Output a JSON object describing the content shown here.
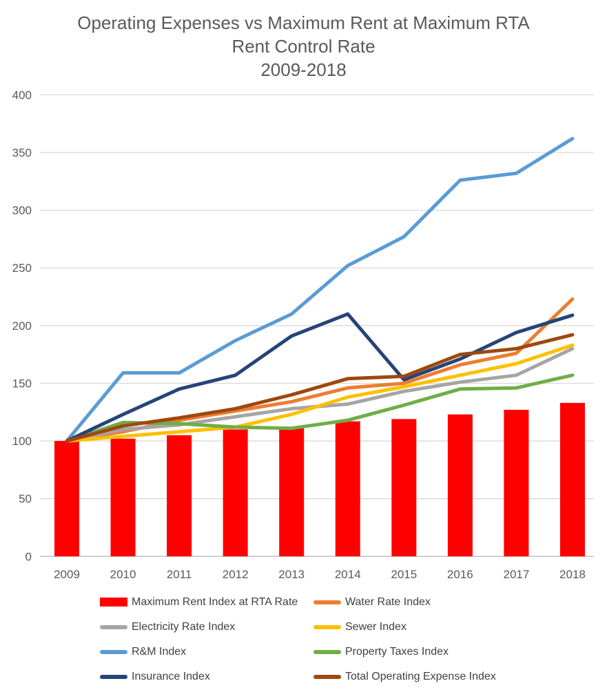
{
  "chart_data": {
    "type": "combo-bar-line",
    "title_lines": [
      "Operating Expenses vs Maximum Rent at Maximum RTA",
      "Rent Control Rate",
      "2009-2018"
    ],
    "categories": [
      "2009",
      "2010",
      "2011",
      "2012",
      "2013",
      "2014",
      "2015",
      "2016",
      "2017",
      "2018"
    ],
    "y_axis": {
      "min": 0,
      "max": 400,
      "step": 50,
      "tick_labels": [
        "0",
        "50",
        "100",
        "150",
        "200",
        "250",
        "300",
        "350",
        "400"
      ]
    },
    "grid": true,
    "bar_series": {
      "name": "Maximum Rent Index at RTA Rate",
      "color": "#FF0000",
      "values": [
        100,
        102,
        105,
        110,
        112,
        117,
        119,
        123,
        127,
        133
      ]
    },
    "line_series": [
      {
        "name": "Water Rate Index",
        "color": "#ED7D31",
        "values": [
          100,
          108,
          118,
          126,
          134,
          146,
          150,
          166,
          176,
          223
        ]
      },
      {
        "name": "Electricity Rate Index",
        "color": "#A5A5A5",
        "values": [
          100,
          110,
          114,
          121,
          128,
          132,
          143,
          151,
          157,
          180
        ]
      },
      {
        "name": "Sewer Index",
        "color": "#FFC000",
        "values": [
          100,
          104,
          108,
          112,
          123,
          138,
          147,
          157,
          167,
          183
        ]
      },
      {
        "name": "R&M Index",
        "color": "#5B9BD5",
        "values": [
          100,
          159,
          159,
          187,
          210,
          252,
          277,
          326,
          332,
          362
        ]
      },
      {
        "name": "Property Taxes Index",
        "color": "#70AD47",
        "values": [
          100,
          116,
          115,
          112,
          111,
          118,
          131,
          145,
          146,
          157
        ]
      },
      {
        "name": "Insurance Index",
        "color": "#264478",
        "values": [
          100,
          123,
          145,
          157,
          191,
          210,
          153,
          171,
          194,
          209
        ]
      },
      {
        "name": "Total Operating Expense Index",
        "color": "#9E480E",
        "values": [
          100,
          113,
          120,
          128,
          140,
          154,
          156,
          175,
          180,
          192
        ]
      }
    ],
    "legend": {
      "position": "bottom",
      "columns": 2,
      "items": [
        {
          "label": "Maximum Rent Index at RTA Rate",
          "color": "#FF0000",
          "swatch": "bar"
        },
        {
          "label": "Water Rate Index",
          "color": "#ED7D31",
          "swatch": "line"
        },
        {
          "label": "Electricity Rate Index",
          "color": "#A5A5A5",
          "swatch": "line"
        },
        {
          "label": "Sewer Index",
          "color": "#FFC000",
          "swatch": "line"
        },
        {
          "label": "R&M Index",
          "color": "#5B9BD5",
          "swatch": "line"
        },
        {
          "label": "Property Taxes Index",
          "color": "#70AD47",
          "swatch": "line"
        },
        {
          "label": "Insurance Index",
          "color": "#264478",
          "swatch": "line"
        },
        {
          "label": "Total Operating Expense Index",
          "color": "#9E480E",
          "swatch": "line"
        }
      ]
    },
    "style": {
      "gridline_color": "#D9D9D9",
      "axis_line_color": "#BFBFBF",
      "tick_label_color": "#595959",
      "title_color": "#595959",
      "legend_text_color": "#404040",
      "background": "#FFFFFF"
    }
  }
}
